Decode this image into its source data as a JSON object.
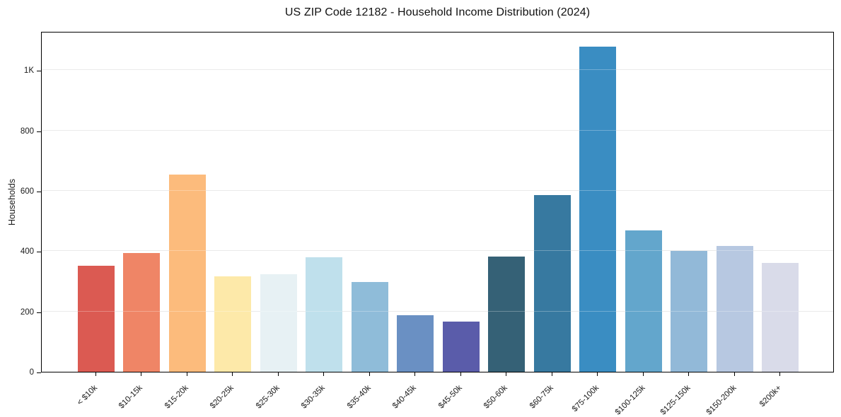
{
  "chart_data": {
    "type": "bar",
    "title": "US ZIP Code 12182 - Household Income Distribution (2024)",
    "xlabel": "",
    "ylabel": "Households",
    "categories": [
      "< $10k",
      "$10-15k",
      "$15-20k",
      "$20-25k",
      "$25-30k",
      "$30-35k",
      "$35-40k",
      "$40-45k",
      "$45-50k",
      "$50-60k",
      "$60-75k",
      "$75-100k",
      "$100-125k",
      "$125-150k",
      "$150-200k",
      "$200k+"
    ],
    "values": [
      351,
      395,
      654,
      317,
      323,
      381,
      298,
      188,
      166,
      382,
      585,
      1078,
      470,
      402,
      418,
      360
    ],
    "bar_colors": [
      "#db5a52",
      "#ef8566",
      "#fcbb7c",
      "#fde9a9",
      "#e7f1f4",
      "#bfe0ec",
      "#8fbcd9",
      "#6a90c3",
      "#5a5caa",
      "#356176",
      "#3779a0",
      "#3a8dc2",
      "#63a6cc",
      "#92b9d8",
      "#b7c8e1",
      "#d9dbe9"
    ],
    "yticks": [
      {
        "value": 0,
        "label": "0"
      },
      {
        "value": 200,
        "label": "200"
      },
      {
        "value": 400,
        "label": "400"
      },
      {
        "value": 600,
        "label": "600"
      },
      {
        "value": 800,
        "label": "800"
      },
      {
        "value": 1000,
        "label": "1K"
      }
    ],
    "ylim": [
      0,
      1130
    ],
    "grid": "horizontal",
    "legend": "none",
    "background_color": "#ffffff",
    "gridline_color": "#e2e2e2",
    "frame_color": "#000000"
  }
}
